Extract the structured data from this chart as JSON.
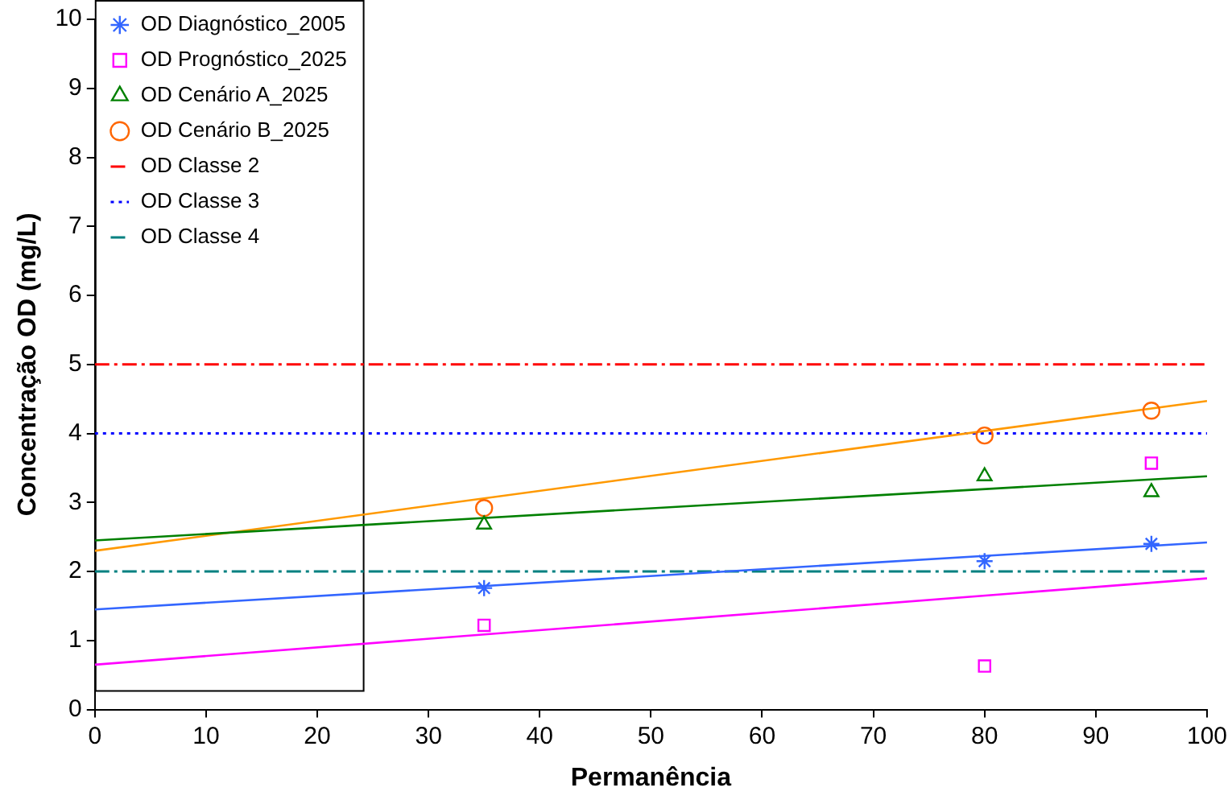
{
  "chart_data": {
    "type": "scatter",
    "xlabel": "Permanência",
    "ylabel": "Concentração OD (mg/L)",
    "xlim": [
      0,
      100
    ],
    "xticks": [
      0,
      10,
      20,
      30,
      40,
      50,
      60,
      70,
      80,
      90,
      100
    ],
    "ylim": [
      0,
      10
    ],
    "yticks": [
      0,
      1,
      2,
      3,
      4,
      5,
      6,
      7,
      8,
      9,
      10
    ],
    "grid": false,
    "legend": "top left",
    "series": [
      {
        "name": "OD Diagnóstico_2005",
        "type": "scatter",
        "marker": "cross",
        "color": "#3366ff",
        "x": [
          35,
          80,
          95
        ],
        "values": [
          1.76,
          2.15,
          2.4
        ]
      },
      {
        "name": "OD Prognóstico_2025",
        "type": "scatter",
        "marker": "square",
        "color": "#ff00ff",
        "x": [
          35,
          80,
          95
        ],
        "values": [
          1.22,
          0.63,
          3.57
        ]
      },
      {
        "name": "OD Cenário A_2025",
        "type": "scatter",
        "marker": "triangle",
        "color": "#008000",
        "x": [
          35,
          80,
          95
        ],
        "values": [
          2.68,
          3.38,
          3.15
        ]
      },
      {
        "name": "OD Cenário B_2025",
        "type": "scatter",
        "marker": "circle",
        "color": "#ff6600",
        "x": [
          35,
          80,
          95
        ],
        "values": [
          2.92,
          3.97,
          4.33
        ]
      },
      {
        "type": "line",
        "color": "#3366ff",
        "x": [
          0,
          100
        ],
        "values": [
          1.45,
          2.42
        ]
      },
      {
        "type": "line",
        "color": "#ff00ff",
        "x": [
          0,
          100
        ],
        "values": [
          0.65,
          1.9
        ]
      },
      {
        "type": "line",
        "color": "#008000",
        "x": [
          0,
          100
        ],
        "values": [
          2.45,
          3.38
        ]
      },
      {
        "type": "line",
        "color": "#ff9900",
        "x": [
          0,
          100
        ],
        "values": [
          2.3,
          4.47
        ]
      }
    ],
    "ref_lines": [
      {
        "axis": "y",
        "value": 5,
        "label": "OD Classe 2",
        "color": "#ff0000",
        "line_style": "dashdot"
      },
      {
        "axis": "y",
        "value": 4,
        "label": "OD Classe 3",
        "color": "#0000ff",
        "line_style": "dotted"
      },
      {
        "axis": "y",
        "value": 2,
        "label": "OD Classe 4",
        "color": "#008080",
        "line_style": "dashdot"
      }
    ]
  }
}
